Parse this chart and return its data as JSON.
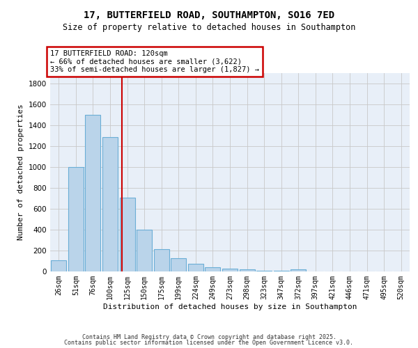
{
  "title_line1": "17, BUTTERFIELD ROAD, SOUTHAMPTON, SO16 7ED",
  "title_line2": "Size of property relative to detached houses in Southampton",
  "xlabel": "Distribution of detached houses by size in Southampton",
  "ylabel": "Number of detached properties",
  "categories": [
    "26sqm",
    "51sqm",
    "76sqm",
    "100sqm",
    "125sqm",
    "150sqm",
    "175sqm",
    "199sqm",
    "224sqm",
    "249sqm",
    "273sqm",
    "298sqm",
    "323sqm",
    "347sqm",
    "372sqm",
    "397sqm",
    "421sqm",
    "446sqm",
    "471sqm",
    "495sqm",
    "520sqm"
  ],
  "values": [
    110,
    1000,
    1500,
    1290,
    710,
    400,
    215,
    130,
    75,
    40,
    30,
    20,
    10,
    10,
    20,
    0,
    0,
    0,
    0,
    0,
    0
  ],
  "bar_color": "#bad4ea",
  "bar_edge_color": "#6aaed6",
  "bg_color": "#e8eff8",
  "grid_color": "#c8c8c8",
  "annotation_text": "17 BUTTERFIELD ROAD: 120sqm\n← 66% of detached houses are smaller (3,622)\n33% of semi-detached houses are larger (1,827) →",
  "annotation_box_color": "#ffffff",
  "annotation_box_edge": "#cc0000",
  "vline_color": "#cc0000",
  "vline_x": 3.7,
  "ylim": [
    0,
    1900
  ],
  "yticks": [
    0,
    200,
    400,
    600,
    800,
    1000,
    1200,
    1400,
    1600,
    1800
  ],
  "footer_line1": "Contains HM Land Registry data © Crown copyright and database right 2025.",
  "footer_line2": "Contains public sector information licensed under the Open Government Licence v3.0."
}
